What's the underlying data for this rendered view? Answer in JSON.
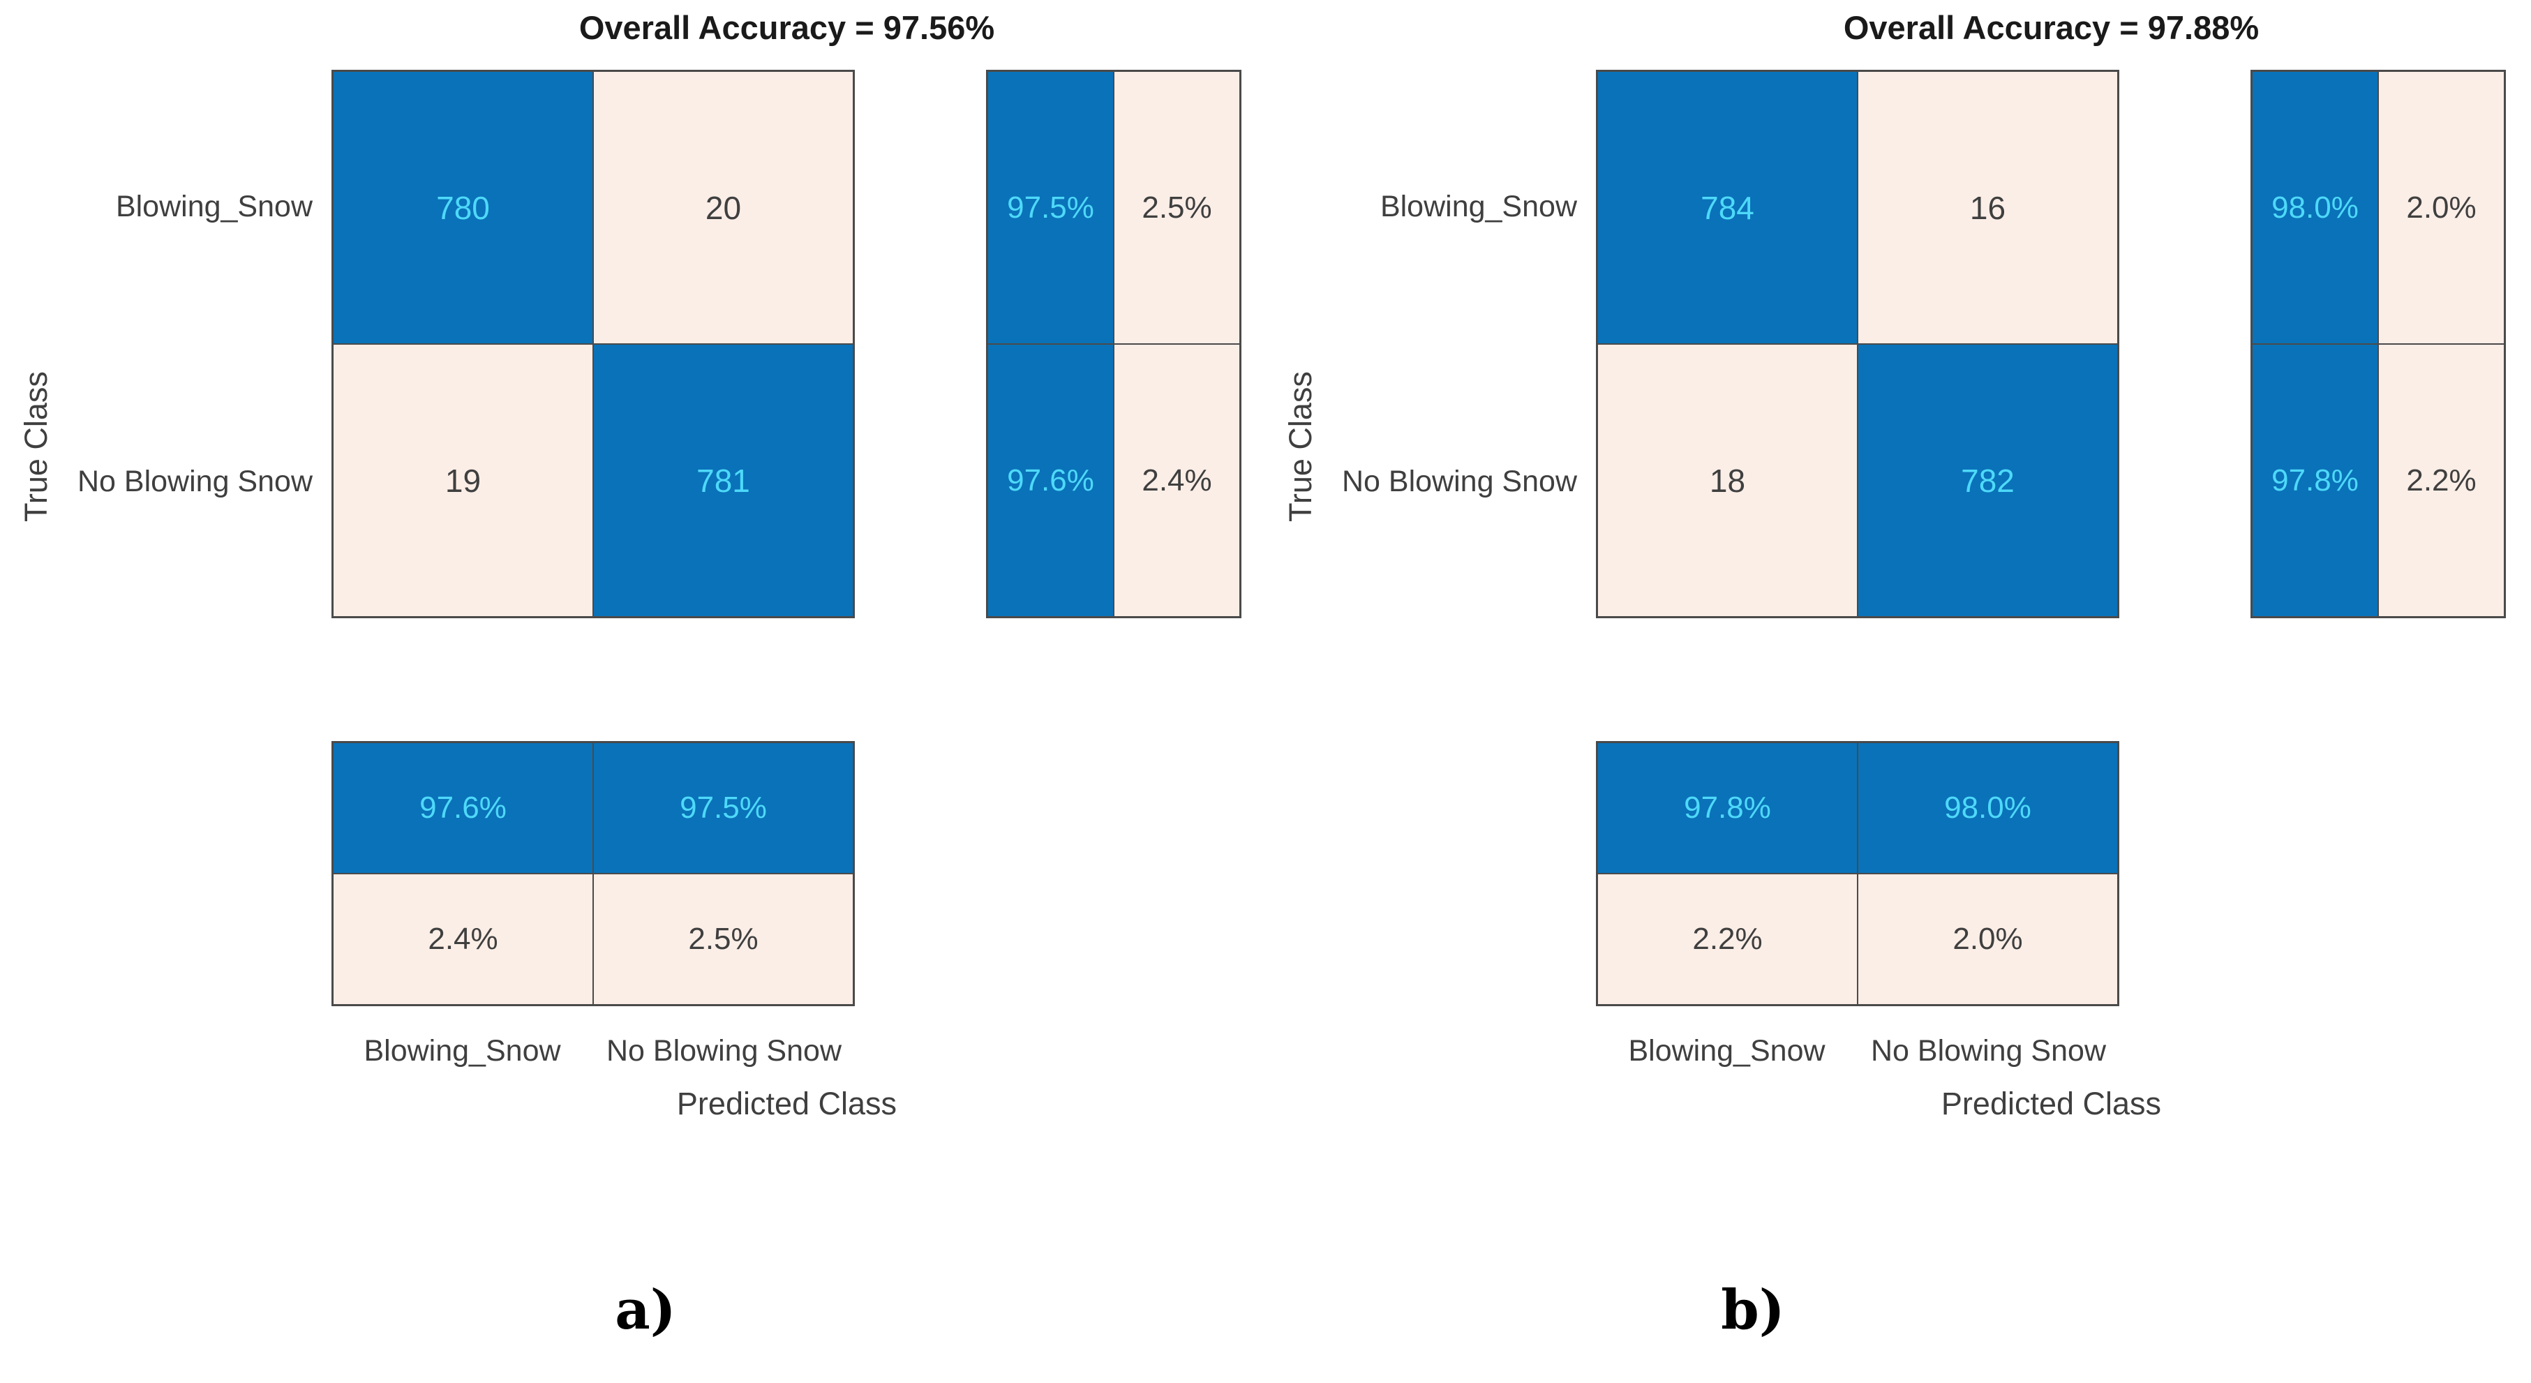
{
  "page": {
    "background": "#FFFFFF"
  },
  "colors": {
    "diagonal_fill": "#0A72B9",
    "off_diagonal_fill": "#FBEEE7",
    "diagonal_text": "#4ED9F9",
    "off_diagonal_text": "#3F3F3F",
    "grid_line": "#4A4A4A",
    "title_text": "#1A1A1A",
    "caption_text": "#000000"
  },
  "chart_data": [
    {
      "type": "heatmap",
      "title": "Overall Accuracy = 97.56%",
      "xlabel": "Predicted Class",
      "ylabel": "True Class",
      "classes": [
        "Blowing_Snow",
        "No Blowing Snow"
      ],
      "matrix": [
        [
          780,
          20
        ],
        [
          19,
          781
        ]
      ],
      "row_summary": [
        [
          "97.5%",
          "2.5%"
        ],
        [
          "97.6%",
          "2.4%"
        ]
      ],
      "col_summary": [
        [
          "97.6%",
          "97.5%"
        ],
        [
          "2.4%",
          "2.5%"
        ]
      ],
      "caption": "a)",
      "legend": "off",
      "grid": "cell-borders"
    },
    {
      "type": "heatmap",
      "title": "Overall Accuracy = 97.88%",
      "xlabel": "Predicted Class",
      "ylabel": "True Class",
      "classes": [
        "Blowing_Snow",
        "No Blowing Snow"
      ],
      "matrix": [
        [
          784,
          16
        ],
        [
          18,
          782
        ]
      ],
      "row_summary": [
        [
          "98.0%",
          "2.0%"
        ],
        [
          "97.8%",
          "2.2%"
        ]
      ],
      "col_summary": [
        [
          "97.8%",
          "98.0%"
        ],
        [
          "2.2%",
          "2.0%"
        ]
      ],
      "caption": "b)",
      "legend": "off",
      "grid": "cell-borders"
    }
  ]
}
